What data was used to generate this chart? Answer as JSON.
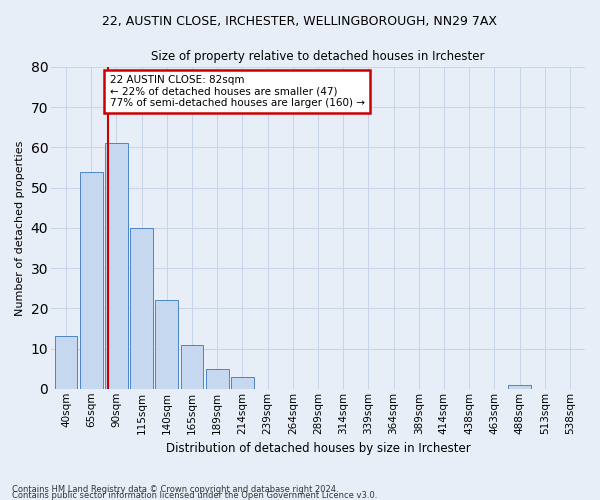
{
  "title": "22, AUSTIN CLOSE, IRCHESTER, WELLINGBOROUGH, NN29 7AX",
  "subtitle": "Size of property relative to detached houses in Irchester",
  "xlabel": "Distribution of detached houses by size in Irchester",
  "ylabel": "Number of detached properties",
  "bins": [
    "40sqm",
    "65sqm",
    "90sqm",
    "115sqm",
    "140sqm",
    "165sqm",
    "189sqm",
    "214sqm",
    "239sqm",
    "264sqm",
    "289sqm",
    "314sqm",
    "339sqm",
    "364sqm",
    "389sqm",
    "414sqm",
    "438sqm",
    "463sqm",
    "488sqm",
    "513sqm",
    "538sqm"
  ],
  "values": [
    13,
    54,
    61,
    40,
    22,
    11,
    5,
    3,
    0,
    0,
    0,
    0,
    0,
    0,
    0,
    0,
    0,
    0,
    1,
    0,
    0
  ],
  "bar_color": "#c5d8f0",
  "bar_edge_color": "#4a86c8",
  "vline_x": 1.68,
  "annotation_text": "22 AUSTIN CLOSE: 82sqm\n← 22% of detached houses are smaller (47)\n77% of semi-detached houses are larger (160) →",
  "annotation_box_color": "#ffffff",
  "annotation_box_edge_color": "#cc0000",
  "ylim": [
    0,
    80
  ],
  "yticks": [
    0,
    10,
    20,
    30,
    40,
    50,
    60,
    70,
    80
  ],
  "grid_color": "#c8d4e8",
  "background_color": "#e8eef8",
  "footer1": "Contains HM Land Registry data © Crown copyright and database right 2024.",
  "footer2": "Contains public sector information licensed under the Open Government Licence v3.0."
}
